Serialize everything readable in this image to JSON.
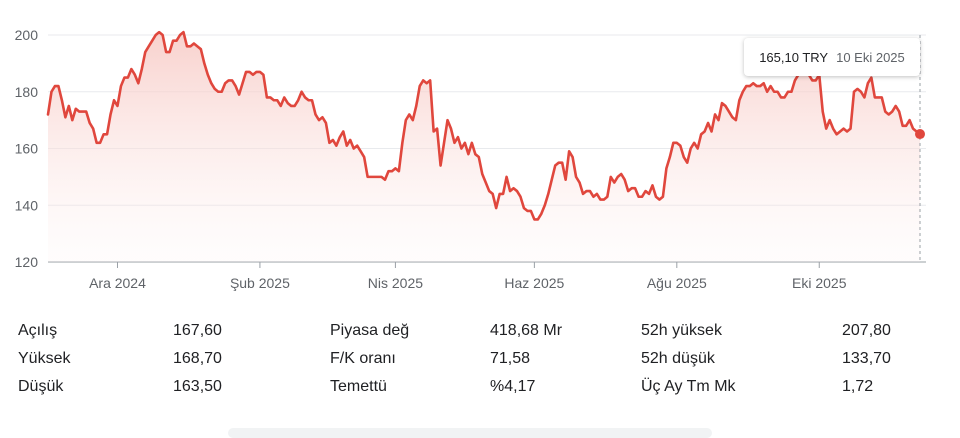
{
  "tooltip": {
    "price": "165,10 TRY",
    "date": "10 Eki 2025"
  },
  "stats": {
    "rows": [
      [
        {
          "label": "Açılış",
          "value": "167,60"
        },
        {
          "label": "Piyasa değ",
          "value": "418,68 Mr"
        },
        {
          "label": "52h yüksek",
          "value": "207,80"
        }
      ],
      [
        {
          "label": "Yüksek",
          "value": "168,70"
        },
        {
          "label": "F/K oranı",
          "value": "71,58"
        },
        {
          "label": "52h düşük",
          "value": "133,70"
        }
      ],
      [
        {
          "label": "Düşük",
          "value": "163,50"
        },
        {
          "label": "Temettü",
          "value": "%4,17"
        },
        {
          "label": "Üç Ay Tm Mk",
          "value": "1,72"
        }
      ]
    ]
  },
  "colors": {
    "line": "#e0473d",
    "fill_top": "#f7c9c4",
    "grid": "#e8eaed"
  },
  "chart_data": {
    "type": "area",
    "title": "",
    "xlabel": "",
    "ylabel": "",
    "ylim": [
      120,
      200
    ],
    "y_ticks": [
      "200",
      "180",
      "160",
      "140",
      "120"
    ],
    "x_ticks": [
      {
        "label": "Ara 2024",
        "index": 20
      },
      {
        "label": "Şub 2025",
        "index": 61
      },
      {
        "label": "Nis 2025",
        "index": 100
      },
      {
        "label": "Haz 2025",
        "index": 140
      },
      {
        "label": "Ağu 2025",
        "index": 181
      },
      {
        "label": "Eki 2025",
        "index": 222
      }
    ],
    "grid": true,
    "series": [
      {
        "values": [
          172,
          180,
          182,
          182,
          177,
          171,
          175,
          170,
          174,
          173,
          173,
          173,
          169,
          167,
          162,
          162,
          165,
          165,
          172,
          177,
          175,
          182,
          185,
          185,
          188,
          186,
          183,
          188,
          194,
          196,
          198,
          200,
          201,
          200,
          194,
          194,
          198,
          198,
          200,
          201,
          196,
          196,
          197,
          196,
          195,
          190,
          186,
          183,
          181,
          180,
          180,
          183,
          184,
          184,
          182,
          179,
          183,
          187,
          187,
          186,
          187,
          187,
          186,
          178,
          178,
          177,
          177,
          175,
          178,
          176,
          175,
          175,
          177,
          180,
          178,
          177,
          177,
          172,
          170,
          171,
          169,
          162,
          163,
          161,
          164,
          166,
          161,
          163,
          160,
          161,
          159,
          157,
          150,
          150,
          150,
          150,
          150,
          149,
          152,
          152,
          153,
          152,
          162,
          170,
          172,
          170,
          175,
          182,
          184,
          183,
          184,
          166,
          167,
          154,
          162,
          170,
          167,
          162,
          164,
          160,
          162,
          158,
          162,
          158,
          157,
          151,
          148,
          145,
          144,
          139,
          144,
          144,
          150,
          145,
          146,
          145,
          143,
          139,
          138,
          138,
          135,
          135,
          137,
          140,
          144,
          149,
          154,
          155,
          155,
          149,
          159,
          157,
          150,
          148,
          144,
          145,
          145,
          143,
          144,
          142,
          142,
          143,
          150,
          148,
          150,
          151,
          149,
          145,
          146,
          146,
          143,
          143,
          145,
          144,
          147,
          143,
          142,
          143,
          153,
          157,
          162,
          162,
          161,
          157,
          155,
          160,
          162,
          160,
          165,
          166,
          169,
          166,
          172,
          170,
          176,
          175,
          173,
          171,
          170,
          177,
          180,
          182,
          182,
          183,
          182,
          182,
          183,
          180,
          182,
          180,
          180,
          178,
          178,
          180,
          180,
          184,
          186,
          188,
          187,
          186,
          184,
          184,
          186,
          173,
          167,
          170,
          167,
          165,
          166,
          167,
          166,
          167,
          180,
          181,
          180,
          178,
          183,
          185,
          178,
          178,
          178,
          173,
          172,
          173,
          175,
          173,
          168,
          168,
          170,
          167,
          166,
          165.1
        ]
      }
    ],
    "last_point": {
      "value": 165.1
    }
  }
}
